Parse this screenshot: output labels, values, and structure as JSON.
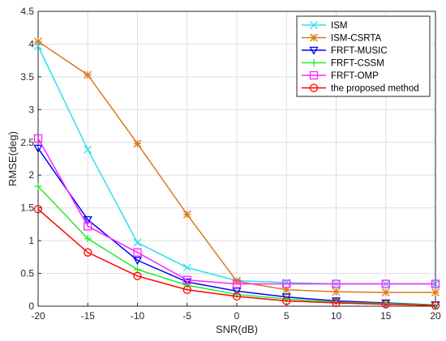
{
  "chart_data": {
    "type": "line",
    "title": "",
    "xlabel": "SNR(dB)",
    "ylabel": "RMSE(deg)",
    "xlim": [
      -20,
      20
    ],
    "ylim": [
      0,
      4.5
    ],
    "x": [
      -20,
      -15,
      -10,
      -5,
      0,
      5,
      10,
      15,
      20
    ],
    "x_ticks": [
      "-20",
      "-15",
      "-10",
      "-5",
      "0",
      "5",
      "10",
      "15",
      "20"
    ],
    "y_ticks": [
      "0",
      "0.5",
      "1",
      "1.5",
      "2",
      "2.5",
      "3",
      "3.5",
      "4",
      "4.5"
    ],
    "grid": true,
    "legend_position": "top-right",
    "series": [
      {
        "name": "ISM",
        "color": "#2ee0f0",
        "marker": "x",
        "values": [
          3.97,
          2.39,
          0.97,
          0.59,
          0.39,
          0.36,
          0.34,
          0.34,
          0.34
        ]
      },
      {
        "name": "ISM-CSRTA",
        "color": "#d97b17",
        "marker": "star",
        "values": [
          4.04,
          3.53,
          2.48,
          1.4,
          0.38,
          0.25,
          0.22,
          0.21,
          0.21
        ]
      },
      {
        "name": "FRFT-MUSIC",
        "color": "#0000ff",
        "marker": "triangle-down",
        "values": [
          2.41,
          1.32,
          0.7,
          0.37,
          0.23,
          0.14,
          0.08,
          0.05,
          0.02
        ]
      },
      {
        "name": "FRFT-CSSM",
        "color": "#22ee22",
        "marker": "plus",
        "values": [
          1.83,
          1.03,
          0.56,
          0.32,
          0.18,
          0.11,
          0.06,
          0.04,
          0.02
        ]
      },
      {
        "name": "FRFT-OMP",
        "color": "#ff22ff",
        "marker": "square",
        "values": [
          2.56,
          1.22,
          0.82,
          0.4,
          0.34,
          0.34,
          0.34,
          0.34,
          0.34
        ]
      },
      {
        "name": "the proposed method",
        "color": "#ff0000",
        "marker": "circle",
        "values": [
          1.48,
          0.82,
          0.46,
          0.25,
          0.15,
          0.08,
          0.05,
          0.03,
          0.01
        ]
      }
    ]
  }
}
